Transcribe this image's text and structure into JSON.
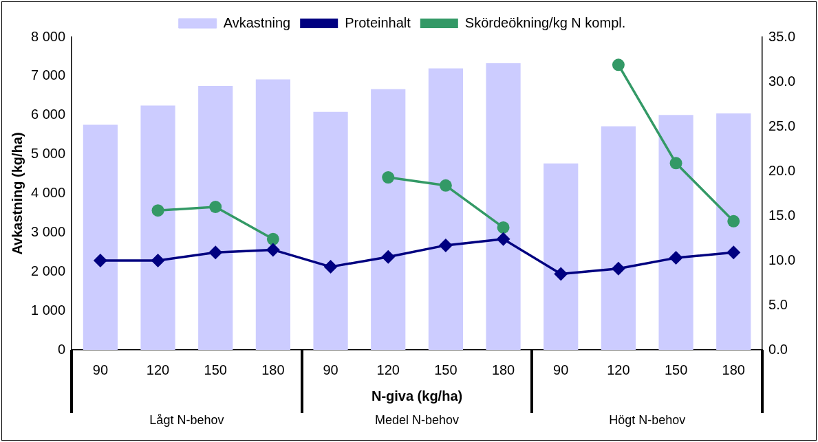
{
  "chart_data": {
    "type": "bar",
    "categories": [
      "90",
      "120",
      "150",
      "180",
      "90",
      "120",
      "150",
      "180",
      "90",
      "120",
      "150",
      "180"
    ],
    "series": [
      {
        "name": "Avkastning",
        "type": "bar",
        "color": "#ccccff",
        "values": [
          5760,
          6250,
          6750,
          6920,
          6090,
          6670,
          7200,
          7330,
          4770,
          5720,
          6010,
          6050
        ]
      },
      {
        "name": "Proteinhalt",
        "type": "line",
        "axis": "y2",
        "marker": "diamond",
        "color": "#000080",
        "values": [
          10.0,
          10.0,
          10.9,
          11.2,
          9.3,
          10.4,
          11.7,
          12.4,
          8.5,
          9.1,
          10.3,
          10.9
        ]
      },
      {
        "name": "Skördeökning/kg N kompl.",
        "type": "line",
        "axis": "y2",
        "marker": "circle",
        "color": "#339966",
        "values": [
          null,
          15.6,
          16.0,
          12.4,
          null,
          19.3,
          18.4,
          13.7,
          null,
          31.9,
          20.9,
          14.4
        ]
      }
    ],
    "xlabel": "N-giva (kg/ha)",
    "ylabel": "Avkastning (kg/ha)",
    "ylim": [
      0,
      8000
    ],
    "yticks": [
      {
        "value": 0,
        "label": "0"
      },
      {
        "value": 1000,
        "label": "1 000"
      },
      {
        "value": 2000,
        "label": "2 000"
      },
      {
        "value": 3000,
        "label": "3 000"
      },
      {
        "value": 4000,
        "label": "4 000"
      },
      {
        "value": 5000,
        "label": "5 000"
      },
      {
        "value": 6000,
        "label": "6 000"
      },
      {
        "value": 7000,
        "label": "7 000"
      },
      {
        "value": 8000,
        "label": "8 000"
      }
    ],
    "y2lim": [
      0,
      35
    ],
    "y2ticks": [
      {
        "value": 0,
        "label": "0.0"
      },
      {
        "value": 5,
        "label": "5.0"
      },
      {
        "value": 10,
        "label": "10.0"
      },
      {
        "value": 15,
        "label": "15.0"
      },
      {
        "value": 20,
        "label": "20.0"
      },
      {
        "value": 25,
        "label": "25.0"
      },
      {
        "value": 30,
        "label": "30.0"
      },
      {
        "value": 35,
        "label": "35.0"
      }
    ],
    "annotations": [
      "Lågt N-behov",
      "Medel N-behov",
      "Högt N-behov"
    ],
    "legend": "top",
    "grid": false,
    "line_style": "solid"
  }
}
